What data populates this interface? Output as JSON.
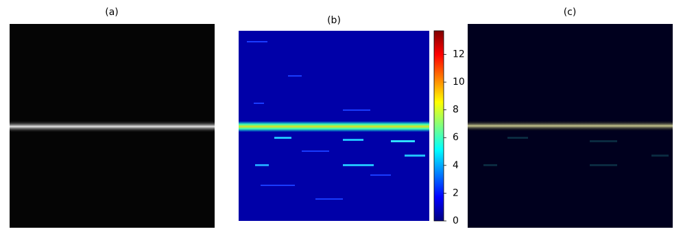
{
  "chart_data": {
    "type": "image-panels",
    "panels": [
      {
        "title": "(a)"
      },
      {
        "title": "(b)"
      },
      {
        "title": "(c)"
      }
    ],
    "colorbar": {
      "colormap": "jet",
      "ylim": [
        0,
        13.7
      ],
      "yticks": [
        0,
        2,
        4,
        6,
        8,
        10,
        12
      ]
    }
  }
}
